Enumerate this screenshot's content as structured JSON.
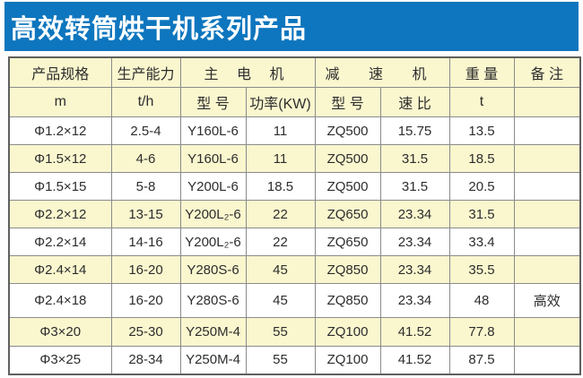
{
  "banner": {
    "title": "高效转筒烘干机系列产品",
    "bg_color": "#0e76be",
    "text_color": "#ffffff"
  },
  "table": {
    "colors": {
      "header_bg": "#faf7cf",
      "stripe_bg": "#faf7cf",
      "row_bg": "#ffffff",
      "border": "#8b8b8b",
      "outer_border": "#5f5f5f",
      "text": "#2d2d2d"
    },
    "header_row1": [
      {
        "label": "产品规格"
      },
      {
        "label": "生产能力"
      },
      {
        "label": "主 电 机"
      },
      {
        "label": "减 速 机"
      },
      {
        "label": "重 量"
      },
      {
        "label": "备 注"
      }
    ],
    "header_row2": [
      "m",
      "t/h",
      "型 号",
      "功率(KW)",
      "型 号",
      "速 比",
      "t",
      ""
    ],
    "rows": [
      [
        "Φ1.2×12",
        "2.5-4",
        "Y160L-6",
        "11",
        "ZQ500",
        "15.75",
        "13.5",
        ""
      ],
      [
        "Φ1.5×12",
        "4-6",
        "Y160L-6",
        "11",
        "ZQ500",
        "31.5",
        "18.5",
        ""
      ],
      [
        "Φ1.5×15",
        "5-8",
        "Y200L-6",
        "18.5",
        "ZQ500",
        "31.5",
        "20.5",
        ""
      ],
      [
        "Φ2.2×12",
        "13-15",
        "Y200L₂-6",
        "22",
        "ZQ650",
        "23.34",
        "31.5",
        ""
      ],
      [
        "Φ2.2×14",
        "14-16",
        "Y200L₂-6",
        "22",
        "ZQ650",
        "23.34",
        "33.4",
        ""
      ],
      [
        "Φ2.4×14",
        "16-20",
        "Y280S-6",
        "45",
        "ZQ850",
        "23.34",
        "35.5",
        ""
      ],
      [
        "Φ2.4×18",
        "16-20",
        "Y280S-6",
        "45",
        "ZQ850",
        "23.34",
        "48",
        "高效"
      ],
      [
        "Φ3×20",
        "25-30",
        "Y250M-4",
        "55",
        "ZQ100",
        "41.52",
        "77.8",
        ""
      ],
      [
        "Φ3×25",
        "28-34",
        "Y250M-4",
        "55",
        "ZQ100",
        "41.52",
        "87.5",
        ""
      ]
    ]
  }
}
